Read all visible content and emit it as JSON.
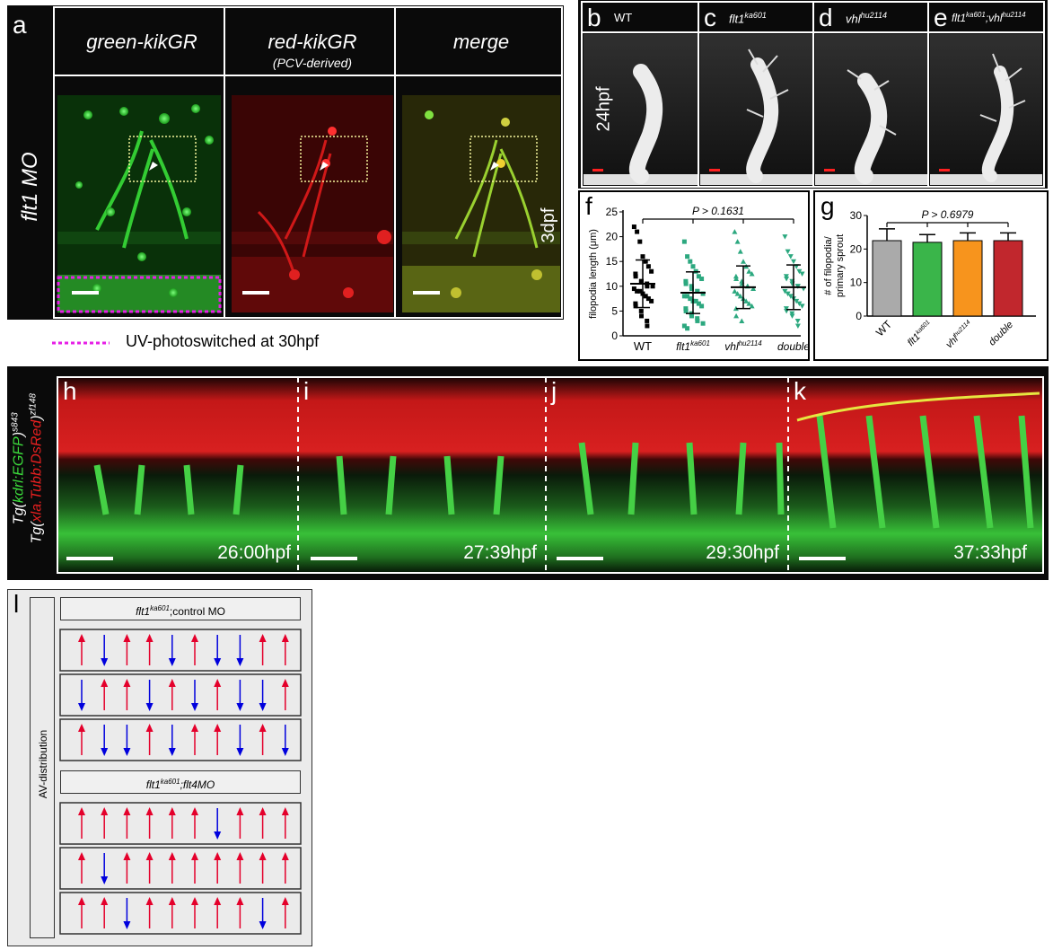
{
  "panel_a": {
    "letter": "a",
    "col1": "green-kikGR",
    "col2": "red-kikGR",
    "col2_sub": "(PCV-derived)",
    "col3": "merge",
    "row_label": "flt1 MO",
    "stage": "3dpf",
    "legend": "UV-photoswitched at 30hpf"
  },
  "panels_be": {
    "stage": "24hpf",
    "b": {
      "letter": "b",
      "title": "WT"
    },
    "c": {
      "letter": "c",
      "title": "flt1",
      "sup": "ka601"
    },
    "d": {
      "letter": "d",
      "title": "vhl",
      "sup": "hu2114"
    },
    "e": {
      "letter": "e",
      "title1": "flt1",
      "sup1": "ka601",
      "title2": ";vhl",
      "sup2": "hu2114"
    }
  },
  "panel_f": {
    "letter": "f",
    "pvalue": "P > 0.1631",
    "ylabel": "filopodia length (μm)",
    "xlabels": [
      {
        "main": "WT",
        "sup": ""
      },
      {
        "main": "flt1",
        "sup": "ka601"
      },
      {
        "main": "vhl",
        "sup": "hu2114"
      },
      {
        "main": "double",
        "sup": ""
      }
    ]
  },
  "panel_g": {
    "letter": "g",
    "pvalue": "P > 0.6979",
    "ylabel1": "# of filopodia/",
    "ylabel2": "primary sprout",
    "xlabels": [
      {
        "main": "WT",
        "sup": ""
      },
      {
        "main": "flt1",
        "sup": "ka601"
      },
      {
        "main": "vhl",
        "sup": "hu2114"
      },
      {
        "main": "double",
        "sup": ""
      }
    ]
  },
  "panels_hk": {
    "ylabel1_parts": [
      "Tg(",
      "kdrl:EGFP",
      ")",
      "s843"
    ],
    "ylabel2_parts": [
      "Tg(",
      "xla.Tubb:DsRed",
      ")",
      "zf148"
    ],
    "frames": [
      {
        "letter": "h",
        "time": "26:00hpf"
      },
      {
        "letter": "i",
        "time": "27:39hpf"
      },
      {
        "letter": "j",
        "time": "29:30hpf"
      },
      {
        "letter": "k",
        "time": "37:33hpf"
      }
    ]
  },
  "panel_l": {
    "letter": "l",
    "side_label": "AV-distribution",
    "group1": {
      "title_main": "flt1",
      "title_sup": "ka601",
      "title_rest": ";control MO"
    },
    "group2": {
      "title_main": "flt1",
      "title_sup": "ka601",
      "title_rest": ";flt4MO"
    }
  },
  "chart_data": [
    {
      "type": "scatter",
      "title": "",
      "ylabel": "filopodia length (μm)",
      "categories": [
        "WT",
        "flt1ka601",
        "vhlhu2114",
        "double"
      ],
      "ylim": [
        0,
        25
      ],
      "yticks": [
        0,
        5,
        10,
        15,
        20,
        25
      ],
      "series": [
        {
          "name": "WT",
          "mean": 10.5,
          "sd": 4.8,
          "values": [
            22,
            21,
            19,
            16,
            15,
            14,
            13,
            12.5,
            12,
            11,
            11,
            10.5,
            10,
            10,
            9.5,
            9,
            9,
            8.5,
            8,
            7.5,
            7,
            6.5,
            6,
            5,
            4,
            3,
            2
          ],
          "color": "#000000",
          "marker": "square"
        },
        {
          "name": "flt1ka601",
          "mean": 8.7,
          "sd": 4.2,
          "values": [
            19,
            16,
            15,
            14,
            13,
            12,
            11.5,
            11,
            10.5,
            10,
            9.5,
            9,
            9,
            8.5,
            8,
            8,
            7.5,
            7,
            7,
            6.5,
            6,
            5.5,
            5,
            4.5,
            4,
            3.5,
            3,
            2.5,
            2,
            1.5
          ],
          "color": "#2ca87f",
          "marker": "square"
        },
        {
          "name": "vhlhu2114",
          "mean": 9.8,
          "sd": 4.3,
          "values": [
            21,
            19,
            17,
            15,
            14,
            13,
            12.5,
            12,
            11.5,
            11,
            10.5,
            10,
            10,
            9.5,
            9,
            8.5,
            8,
            7.5,
            7,
            6.5,
            6,
            5.5,
            4,
            3
          ],
          "color": "#2ca87f",
          "marker": "triangle"
        },
        {
          "name": "double",
          "mean": 9.8,
          "sd": 4.5,
          "values": [
            20,
            17,
            16,
            15,
            14,
            13,
            12.5,
            12,
            11.5,
            11,
            10.5,
            10,
            10,
            9.5,
            9,
            8.5,
            8,
            7.5,
            7,
            6.5,
            6,
            5.5,
            5,
            4.5,
            4,
            3,
            2
          ],
          "color": "#2ca87f",
          "marker": "inverted-triangle"
        }
      ]
    },
    {
      "type": "bar",
      "title": "",
      "ylabel": "# of filopodia/ primary sprout",
      "categories": [
        "WT",
        "flt1ka601",
        "vhlhu2114",
        "double"
      ],
      "values": [
        22.5,
        22,
        22.5,
        22.5
      ],
      "errors": [
        3.5,
        2.3,
        2.3,
        2.3
      ],
      "colors": [
        "#aaaaaa",
        "#3ab54a",
        "#f7941d",
        "#c1272d"
      ],
      "ylim": [
        0,
        30
      ],
      "yticks": [
        0,
        10,
        20,
        30
      ]
    }
  ],
  "arrows": {
    "up_color": "#e4002b",
    "down_color": "#0000dd",
    "group1_rows": [
      [
        "up",
        "down",
        "up",
        "up",
        "down",
        "up",
        "down",
        "down",
        "up",
        "up"
      ],
      [
        "down",
        "up",
        "up",
        "down",
        "up",
        "down",
        "up",
        "down",
        "down",
        "up"
      ],
      [
        "up",
        "down",
        "down",
        "up",
        "down",
        "up",
        "up",
        "down",
        "up",
        "down"
      ]
    ],
    "group2_rows": [
      [
        "up",
        "up",
        "up",
        "up",
        "up",
        "up",
        "down",
        "up",
        "up",
        "up"
      ],
      [
        "up",
        "down",
        "up",
        "up",
        "up",
        "up",
        "up",
        "up",
        "up",
        "up"
      ],
      [
        "up",
        "up",
        "down",
        "up",
        "up",
        "up",
        "up",
        "up",
        "down",
        "up"
      ]
    ]
  }
}
